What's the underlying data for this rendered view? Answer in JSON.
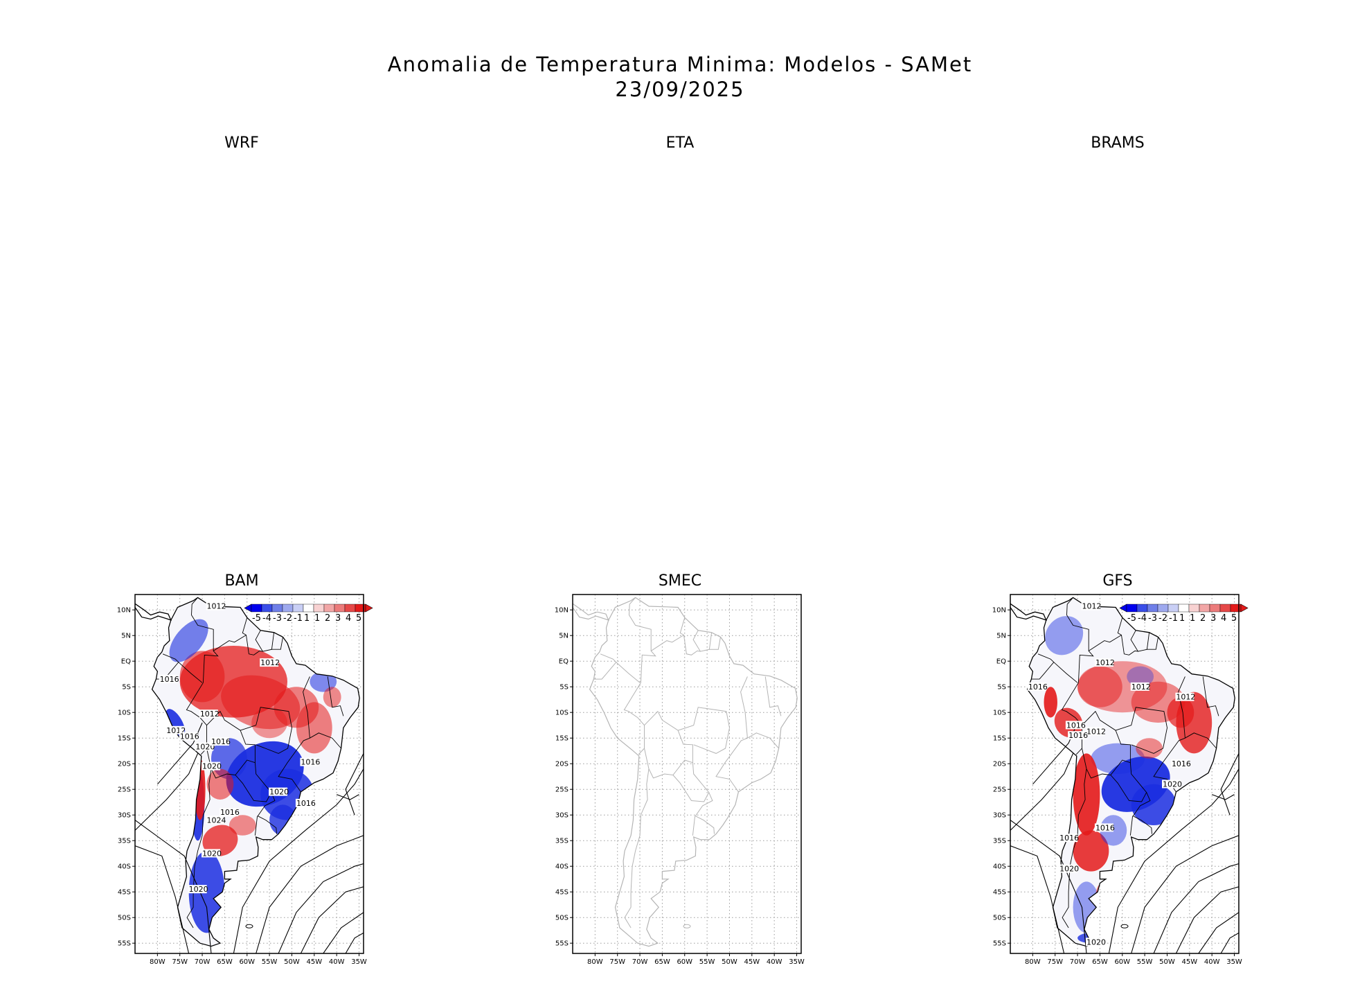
{
  "title_line1": "Anomalia de Temperatura Minima: Modelos - SAMet",
  "title_line2": "23/09/2025",
  "panels": [
    {
      "name": "WRF",
      "has_map": false
    },
    {
      "name": "ETA",
      "has_map": false
    },
    {
      "name": "BRAMS",
      "has_map": false
    },
    {
      "name": "BAM",
      "has_map": true,
      "has_legend": true,
      "isobar_labels": [
        "1012",
        "1012",
        "1016",
        "1012",
        "1012",
        "1016",
        "1020",
        "1016",
        "1020",
        "1016",
        "1020",
        "1016",
        "1016",
        "1024",
        "1020",
        "1020"
      ]
    },
    {
      "name": "SMEC",
      "has_map": true,
      "has_legend": false,
      "isobar_labels": []
    },
    {
      "name": "GFS",
      "has_map": true,
      "has_legend": true,
      "isobar_labels": [
        "1012",
        "1012",
        "1016",
        "1012",
        "1012",
        "1016",
        "1012",
        "1016",
        "1016",
        "1020",
        "1016",
        "1016",
        "1020",
        "1020"
      ]
    }
  ],
  "lat_ticks": [
    "10N",
    "5N",
    "EQ",
    "5S",
    "10S",
    "15S",
    "20S",
    "25S",
    "30S",
    "35S",
    "40S",
    "45S",
    "50S",
    "55S"
  ],
  "lon_ticks": [
    "80W",
    "75W",
    "70W",
    "65W",
    "60W",
    "55W",
    "50W",
    "45W",
    "40W",
    "35W"
  ],
  "legend_labels": [
    "-5",
    "-4",
    "-3",
    "-2",
    "-1",
    "1",
    "1",
    "2",
    "3",
    "4",
    "5"
  ],
  "legend_colors": [
    "#0000ee",
    "#3a4ee8",
    "#6f7fe8",
    "#9ea9ee",
    "#c9cff5",
    "#ffffff",
    "#f8d2d2",
    "#f2a6a6",
    "#ec7b7b",
    "#e64848",
    "#e41a1a"
  ],
  "colors": {
    "warm": "#e41a1a",
    "cold": "#1b2ee0",
    "coast_smec": "#b4b4b4",
    "grid": "#9a9a9a"
  }
}
